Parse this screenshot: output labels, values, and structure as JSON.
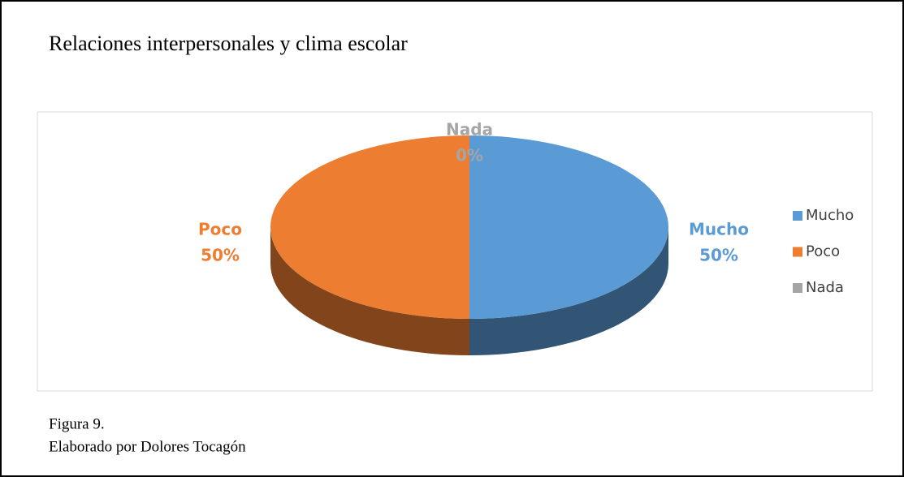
{
  "chart_data": {
    "type": "pie",
    "title": "Relaciones interpersonales y clima escolar",
    "categories": [
      "Mucho",
      "Poco",
      "Nada"
    ],
    "values": [
      50,
      50,
      0
    ],
    "value_labels": [
      "50%",
      "50%",
      "0%"
    ],
    "colors": [
      "#5b9bd5",
      "#ed7d31",
      "#a5a5a5"
    ],
    "legend": "right"
  },
  "figure_label": "Figura 9.",
  "credit": "Elaborado por Dolores Tocagón"
}
